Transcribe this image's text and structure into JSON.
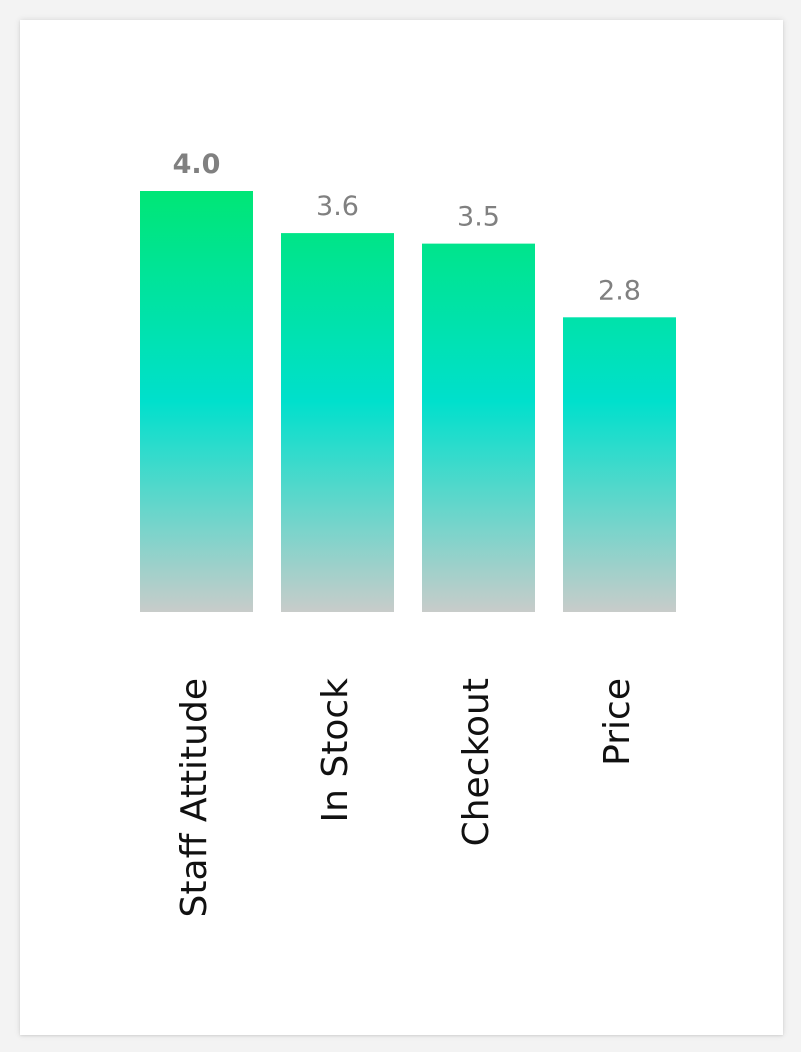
{
  "chart_data": {
    "type": "bar",
    "categories": [
      "Staff Attitude",
      "In Stock",
      "Checkout",
      "Price"
    ],
    "values": [
      4.0,
      3.6,
      3.5,
      2.8
    ],
    "value_labels": [
      "4.0",
      "3.6",
      "3.5",
      "2.8"
    ],
    "title": "",
    "xlabel": "",
    "ylabel": "",
    "ylim": [
      0,
      4.0
    ],
    "grid": false,
    "legend": "none",
    "colors": {
      "gradient_top": "#00e676",
      "gradient_mid": "#00e0cc",
      "gradient_bottom": "#c8ccca",
      "value_label": "#808080",
      "category_label": "#111111",
      "background": "#ffffff"
    }
  }
}
